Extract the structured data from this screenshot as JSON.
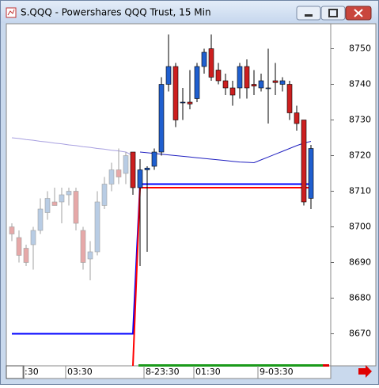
{
  "window": {
    "title": "S.QQQ - Powershares QQQ Trust, 15 Min"
  },
  "chart_data": {
    "type": "candlestick",
    "categories": [
      null,
      null,
      ":30",
      null,
      null,
      null,
      null,
      null,
      "03:30",
      null,
      null,
      null,
      null,
      null,
      null,
      null,
      null,
      null,
      null,
      "8-23:30",
      null,
      null,
      null,
      null,
      null,
      null,
      "01:30",
      null,
      null,
      null,
      null,
      null,
      null,
      null,
      null,
      "9-03:30",
      null,
      null,
      null,
      null,
      null,
      null,
      null
    ],
    "ylim": [
      8661,
      8757
    ],
    "yticks": [
      8670,
      8680,
      8690,
      8700,
      8710,
      8720,
      8730,
      8740,
      8750
    ],
    "series": [
      {
        "up_color": "#b8cce4",
        "down_color": "#e6a8a8",
        "wick_color": "#a0a0a0",
        "open": [
          8700,
          8697,
          8694,
          8695,
          8699,
          8704,
          8707,
          8707,
          8709,
          8710,
          8699,
          8691,
          8693,
          8706,
          8712,
          8716,
          8715,
          null,
          null,
          null,
          null,
          null,
          null,
          null,
          null,
          null,
          null,
          null,
          null,
          null,
          null,
          null,
          null,
          null,
          null,
          null,
          null,
          null,
          null,
          null,
          null,
          null,
          null
        ],
        "high": [
          8701,
          8699,
          8695,
          8700,
          8708,
          8710,
          8711,
          8711,
          8711,
          8711,
          8700,
          8696,
          8710,
          8714,
          8718,
          8722,
          8721,
          null,
          null,
          null,
          null,
          null,
          null,
          null,
          null,
          null,
          null,
          null,
          null,
          null,
          null,
          null,
          null,
          null,
          null,
          null,
          null,
          null,
          null,
          null,
          null,
          null,
          null
        ],
        "low": [
          8696,
          8690,
          8689,
          8688,
          8698,
          8702,
          8706,
          8701,
          8706,
          8699,
          8688,
          8685,
          8692,
          8705,
          8710,
          8712,
          8712,
          null,
          null,
          null,
          null,
          null,
          null,
          null,
          null,
          null,
          null,
          null,
          null,
          null,
          null,
          null,
          null,
          null,
          null,
          null,
          null,
          null,
          null,
          null,
          null,
          null,
          null
        ],
        "close": [
          8698,
          8692,
          8690,
          8699,
          8705,
          8708,
          8706,
          8709,
          8710,
          8701,
          8690,
          8693,
          8707,
          8712,
          8716,
          8714,
          8720,
          null,
          null,
          null,
          null,
          null,
          null,
          null,
          null,
          null,
          null,
          null,
          null,
          null,
          null,
          null,
          null,
          null,
          null,
          null,
          null,
          null,
          null,
          null,
          null,
          null,
          null
        ]
      },
      {
        "up_color": "#1f5fcf",
        "down_color": "#cc1f1f",
        "wick_color": "#000000",
        "open": [
          null,
          null,
          null,
          null,
          null,
          null,
          null,
          null,
          null,
          null,
          null,
          null,
          null,
          null,
          null,
          null,
          null,
          8721,
          8711,
          8716,
          8717,
          8721,
          8740,
          8745,
          8735,
          8735,
          8736,
          8745,
          8750,
          8744,
          8741,
          8739,
          8739,
          8745,
          8740,
          8739,
          8739,
          8741,
          8740,
          8740,
          8732,
          8730,
          8708
        ],
        "high": [
          null,
          null,
          null,
          null,
          null,
          null,
          null,
          null,
          null,
          null,
          null,
          null,
          null,
          null,
          null,
          null,
          null,
          8721,
          8719,
          8717,
          8722,
          8742,
          8754,
          8746,
          8739,
          8744,
          8746,
          8750,
          8754,
          8746,
          8743,
          8741,
          8746,
          8747,
          8744,
          8743,
          8750,
          8746,
          8742,
          8741,
          8734,
          8730,
          8723
        ],
        "low": [
          null,
          null,
          null,
          null,
          null,
          null,
          null,
          null,
          null,
          null,
          null,
          null,
          null,
          null,
          null,
          null,
          null,
          8709,
          8689,
          8693,
          8716,
          8720,
          8738,
          8728,
          8730,
          8733,
          8735,
          8743,
          8741,
          8740,
          8737,
          8734,
          8736,
          8736,
          8737,
          8738,
          8729,
          8737,
          8738,
          8730,
          8727,
          8706,
          8705
        ],
        "close": [
          null,
          null,
          null,
          null,
          null,
          null,
          null,
          null,
          null,
          null,
          null,
          null,
          null,
          null,
          null,
          null,
          null,
          8711,
          8716,
          8716.5,
          8721,
          8740,
          8745,
          8730,
          8735,
          8734.5,
          8745,
          8749,
          8742,
          8741,
          8739,
          8737,
          8745,
          8739,
          8739.5,
          8741,
          8739,
          8740.5,
          8741,
          8732,
          8729,
          8707,
          8722
        ]
      }
    ],
    "lines": [
      {
        "color": "#a8a0e0",
        "values": [
          8725,
          8724.8,
          8724.5,
          8724.3,
          8724,
          8723.8,
          8723.5,
          8723.3,
          8723,
          8722.8,
          8722.5,
          8722.3,
          8722,
          8721.8,
          8721.5,
          8721.3,
          8721,
          8720,
          null,
          null,
          null,
          null,
          null,
          null,
          null,
          null,
          null,
          null,
          null,
          null,
          null,
          null,
          null,
          null,
          null,
          null,
          null,
          null,
          null,
          null,
          null,
          null,
          null
        ]
      },
      {
        "color": "#2020c0",
        "values": [
          null,
          null,
          null,
          null,
          null,
          null,
          null,
          null,
          null,
          null,
          null,
          null,
          null,
          null,
          null,
          null,
          null,
          null,
          8721,
          8720.8,
          8720.6,
          8720.4,
          8720.2,
          8720,
          8719.8,
          8719.6,
          8719.4,
          8719.2,
          8719,
          8718.8,
          8718.6,
          8718.4,
          8718.2,
          8718.1,
          8718,
          8718.8,
          8719.6,
          8720.4,
          8721.2,
          8722,
          8722.8,
          8723.5,
          8724
        ]
      },
      {
        "color": "#0000ff",
        "values": [
          8670,
          8670,
          8670,
          8670,
          8670,
          8670,
          8670,
          8670,
          8670,
          8670,
          8670,
          8670,
          8670,
          8670,
          8670,
          8670,
          8670,
          8670,
          8712,
          8712,
          8712,
          8712,
          8712,
          8712,
          8712,
          8712,
          8712,
          8712,
          8712,
          8712,
          8712,
          8712,
          8712,
          8712,
          8712,
          8712,
          8712,
          8712,
          8712,
          8712,
          8712,
          8712,
          8712
        ]
      },
      {
        "color": "#ff0000",
        "values": [
          null,
          null,
          null,
          null,
          null,
          null,
          null,
          null,
          null,
          null,
          null,
          null,
          null,
          null,
          null,
          null,
          null,
          8661,
          8711,
          8711,
          8711,
          8711,
          8711,
          8711,
          8711,
          8711,
          8711,
          8711,
          8711,
          8711,
          8711,
          8711,
          8711,
          8711,
          8711,
          8711,
          8711,
          8711,
          8711,
          8711,
          8711,
          8711,
          8711
        ]
      }
    ]
  }
}
